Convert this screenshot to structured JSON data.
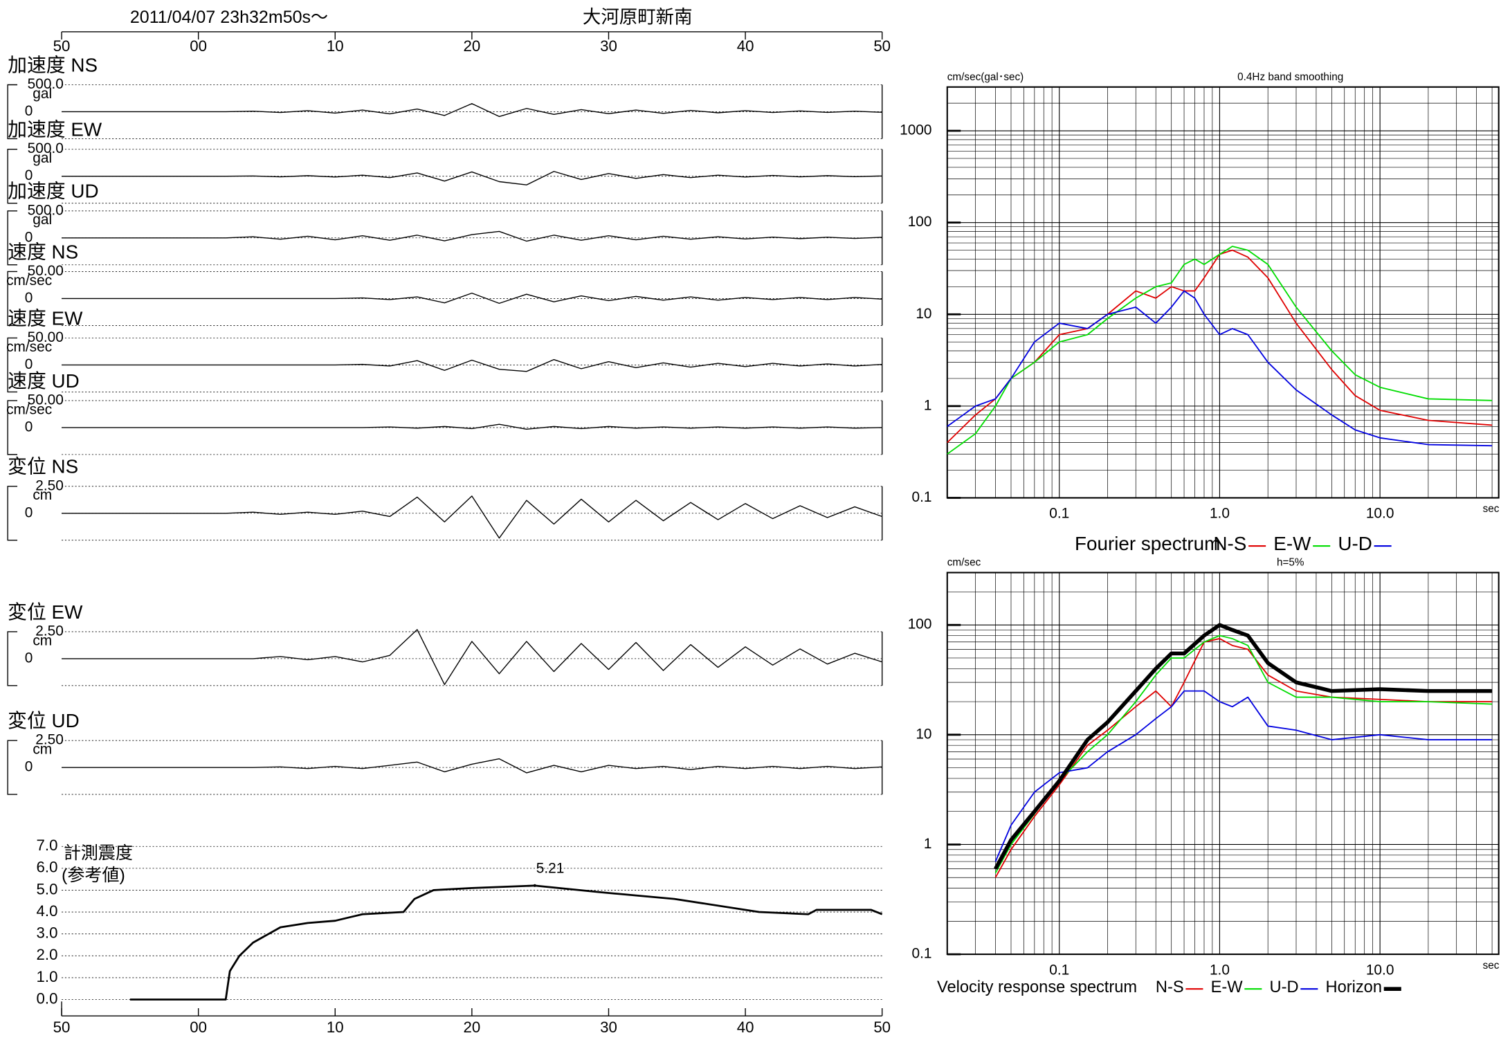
{
  "header": {
    "datetime": "2011/04/07  23h32m50s〜",
    "station": "大河原町新南"
  },
  "chart_data": [
    {
      "type": "trace",
      "title": "加速度 NS",
      "unit": "gal",
      "color": "#000000",
      "xlim": [
        0,
        60
      ],
      "xticks": [
        {
          "value": 0,
          "label": "50"
        },
        {
          "value": 10,
          "label": "00"
        },
        {
          "value": 20,
          "label": "10"
        },
        {
          "value": 30,
          "label": "20"
        },
        {
          "value": 40,
          "label": "30"
        },
        {
          "value": 50,
          "label": "40"
        },
        {
          "value": 60,
          "label": "50"
        }
      ],
      "ylim": [
        -500,
        500
      ],
      "yticks": [
        {
          "value": 500,
          "label": "500.0"
        },
        0
      ],
      "x": [
        0,
        2,
        4,
        6,
        8,
        10,
        12,
        14,
        16,
        18,
        20,
        22,
        24,
        26,
        28,
        30,
        32,
        34,
        36,
        38,
        40,
        42,
        44,
        46,
        48,
        50,
        52,
        54,
        56,
        58,
        60
      ],
      "values": [
        0,
        0,
        0,
        0,
        0,
        0,
        0,
        10,
        -15,
        20,
        -25,
        30,
        -40,
        50,
        -70,
        150,
        -90,
        60,
        -50,
        40,
        -35,
        30,
        -30,
        25,
        -20,
        20,
        -15,
        15,
        -12,
        10,
        -10
      ]
    },
    {
      "type": "trace",
      "title": "加速度 EW",
      "unit": "gal",
      "color": "#000000",
      "xlim": [
        0,
        60
      ],
      "ylim": [
        -500,
        500
      ],
      "yticks": [
        {
          "value": 500,
          "label": "500.0"
        },
        0
      ],
      "x": [
        0,
        2,
        4,
        6,
        8,
        10,
        12,
        14,
        16,
        18,
        20,
        22,
        24,
        26,
        28,
        30,
        32,
        34,
        36,
        38,
        40,
        42,
        44,
        46,
        48,
        50,
        52,
        54,
        56,
        58,
        60
      ],
      "values": [
        0,
        0,
        0,
        0,
        0,
        0,
        0,
        5,
        -10,
        10,
        -15,
        20,
        -25,
        60,
        -90,
        80,
        -100,
        -160,
        90,
        -60,
        50,
        -40,
        30,
        -25,
        20,
        -15,
        15,
        -10,
        10,
        -8,
        5
      ]
    },
    {
      "type": "trace",
      "title": "加速度 UD",
      "unit": "gal",
      "color": "#000000",
      "xlim": [
        0,
        60
      ],
      "ylim": [
        -500,
        500
      ],
      "yticks": [
        {
          "value": 500,
          "label": "500.0"
        },
        0
      ],
      "x": [
        0,
        2,
        4,
        6,
        8,
        10,
        12,
        14,
        16,
        18,
        20,
        22,
        24,
        26,
        28,
        30,
        32,
        34,
        36,
        38,
        40,
        42,
        44,
        46,
        48,
        50,
        52,
        54,
        56,
        58,
        60
      ],
      "values": [
        0,
        0,
        0,
        0,
        0,
        0,
        0,
        20,
        -25,
        30,
        -35,
        40,
        -45,
        50,
        -55,
        60,
        120,
        -60,
        50,
        -45,
        40,
        -35,
        30,
        -25,
        20,
        -20,
        15,
        -15,
        12,
        -10,
        10
      ]
    },
    {
      "type": "trace",
      "title": "速度 NS",
      "unit": "cm/sec",
      "color": "#000000",
      "xlim": [
        0,
        60
      ],
      "ylim": [
        -50,
        50
      ],
      "yticks": [
        {
          "value": 50,
          "label": "50.00"
        },
        0
      ],
      "x": [
        0,
        2,
        4,
        6,
        8,
        10,
        12,
        14,
        16,
        18,
        20,
        22,
        24,
        26,
        28,
        30,
        32,
        34,
        36,
        38,
        40,
        42,
        44,
        46,
        48,
        50,
        52,
        54,
        56,
        58,
        60
      ],
      "values": [
        0,
        0,
        0,
        0,
        0,
        0,
        0,
        0,
        0,
        0,
        0,
        1,
        -2,
        3,
        -8,
        10,
        -9,
        8,
        -6,
        5,
        -4,
        4,
        -3,
        3,
        -3,
        2,
        -2,
        2,
        -2,
        2,
        -1
      ]
    },
    {
      "type": "trace",
      "title": "速度 EW",
      "unit": "cm/sec",
      "color": "#000000",
      "xlim": [
        0,
        60
      ],
      "ylim": [
        -50,
        50
      ],
      "yticks": [
        {
          "value": 50,
          "label": "50.00"
        },
        0
      ],
      "x": [
        0,
        2,
        4,
        6,
        8,
        10,
        12,
        14,
        16,
        18,
        20,
        22,
        24,
        26,
        28,
        30,
        32,
        34,
        36,
        38,
        40,
        42,
        44,
        46,
        48,
        50,
        52,
        54,
        56,
        58,
        60
      ],
      "values": [
        0,
        0,
        0,
        0,
        0,
        0,
        0,
        0,
        0,
        0,
        0,
        1,
        -2,
        8,
        -10,
        9,
        -8,
        -12,
        10,
        -7,
        6,
        -5,
        4,
        -4,
        3,
        -3,
        3,
        -2,
        2,
        -2,
        1
      ]
    },
    {
      "type": "trace",
      "title": "速度 UD",
      "unit": "cm/sec",
      "color": "#000000",
      "xlim": [
        0,
        60
      ],
      "ylim": [
        -50,
        50
      ],
      "yticks": [
        {
          "value": 50,
          "label": "50.00"
        },
        0
      ],
      "x": [
        0,
        2,
        4,
        6,
        8,
        10,
        12,
        14,
        16,
        18,
        20,
        22,
        24,
        26,
        28,
        30,
        32,
        34,
        36,
        38,
        40,
        42,
        44,
        46,
        48,
        50,
        52,
        54,
        56,
        58,
        60
      ],
      "values": [
        0,
        0,
        0,
        0,
        0,
        0,
        0,
        0,
        0,
        0,
        0,
        0,
        1,
        -1,
        2,
        -2,
        6,
        -3,
        2,
        -2,
        2,
        -1,
        1,
        -1,
        1,
        -1,
        1,
        -1,
        1,
        -1,
        0
      ]
    },
    {
      "type": "trace",
      "title": "変位 NS",
      "unit": "cm",
      "color": "#000000",
      "xlim": [
        0,
        60
      ],
      "ylim": [
        -2.5,
        2.5
      ],
      "yticks": [
        {
          "value": 2.5,
          "label": "2.50"
        },
        0
      ],
      "x": [
        0,
        2,
        4,
        6,
        8,
        10,
        12,
        14,
        16,
        18,
        20,
        22,
        24,
        26,
        28,
        30,
        32,
        34,
        36,
        38,
        40,
        42,
        44,
        46,
        48,
        50,
        52,
        54,
        56,
        58,
        60
      ],
      "values": [
        0,
        0,
        0,
        0,
        0,
        0,
        0,
        0.1,
        -0.1,
        0.1,
        -0.1,
        0.2,
        -0.3,
        1.5,
        -0.8,
        1.6,
        -2.3,
        1.2,
        -1.0,
        1.3,
        -0.8,
        1.2,
        -0.7,
        1.0,
        -0.6,
        0.9,
        -0.5,
        0.7,
        -0.4,
        0.6,
        -0.3
      ]
    },
    {
      "type": "trace",
      "title": "変位 EW",
      "unit": "cm",
      "color": "#000000",
      "xlim": [
        0,
        60
      ],
      "ylim": [
        -2.5,
        2.5
      ],
      "yticks": [
        {
          "value": 2.5,
          "label": "2.50"
        },
        0
      ],
      "x": [
        0,
        2,
        4,
        6,
        8,
        10,
        12,
        14,
        16,
        18,
        20,
        22,
        24,
        26,
        28,
        30,
        32,
        34,
        36,
        38,
        40,
        42,
        44,
        46,
        48,
        50,
        52,
        54,
        56,
        58,
        60
      ],
      "values": [
        0,
        0,
        0,
        0,
        0,
        0,
        0,
        0,
        0.2,
        -0.1,
        0.2,
        -0.3,
        0.3,
        2.7,
        -2.4,
        1.6,
        -1.4,
        1.6,
        -1.2,
        1.4,
        -1.0,
        1.5,
        -1.1,
        1.3,
        -0.8,
        1.1,
        -0.6,
        0.9,
        -0.5,
        0.5,
        -0.3
      ]
    },
    {
      "type": "trace",
      "title": "変位 UD",
      "unit": "cm",
      "color": "#000000",
      "xlim": [
        0,
        60
      ],
      "ylim": [
        -2.5,
        2.5
      ],
      "yticks": [
        {
          "value": 2.5,
          "label": "2.50"
        },
        0
      ],
      "x": [
        0,
        2,
        4,
        6,
        8,
        10,
        12,
        14,
        16,
        18,
        20,
        22,
        24,
        26,
        28,
        30,
        32,
        34,
        36,
        38,
        40,
        42,
        44,
        46,
        48,
        50,
        52,
        54,
        56,
        58,
        60
      ],
      "values": [
        0,
        0,
        0,
        0,
        0,
        0,
        0,
        0,
        0.05,
        -0.1,
        0.1,
        -0.1,
        0.2,
        0.5,
        -0.4,
        0.3,
        0.8,
        -0.5,
        0.2,
        -0.4,
        0.2,
        -0.1,
        0.1,
        -0.2,
        0.1,
        -0.1,
        0.1,
        -0.1,
        0.1,
        -0.1,
        0.05
      ]
    },
    {
      "type": "intensity",
      "y_label": "計測震度",
      "y_label_note": "(参考値)",
      "color": "#000000",
      "xlim": [
        0,
        60
      ],
      "xticks": [
        {
          "value": 0,
          "label": "50"
        },
        {
          "value": 10,
          "label": "00"
        },
        {
          "value": 20,
          "label": "10"
        },
        {
          "value": 30,
          "label": "20"
        },
        {
          "value": 40,
          "label": "30"
        },
        {
          "value": 50,
          "label": "40"
        },
        {
          "value": 60,
          "label": "50"
        }
      ],
      "ylim": [
        0,
        7
      ],
      "yticks": [
        {
          "value": 0,
          "label": "0.0"
        },
        {
          "value": 1,
          "label": "1.0"
        },
        {
          "value": 2,
          "label": "2.0"
        },
        {
          "value": 3,
          "label": "3.0"
        },
        {
          "value": 4,
          "label": "4.0"
        },
        {
          "value": 5,
          "label": "5.0"
        },
        {
          "value": 6,
          "label": "6.0"
        },
        {
          "value": 7,
          "label": "7.0"
        }
      ],
      "x": [
        5,
        12,
        12.3,
        13,
        14,
        16,
        18,
        20,
        22,
        25,
        25.8,
        27.2,
        30,
        34.6,
        39.5,
        44.8,
        51,
        54.6,
        55.2,
        59.2,
        60
      ],
      "values": [
        0,
        0,
        1.3,
        2.0,
        2.6,
        3.3,
        3.5,
        3.6,
        3.9,
        4.0,
        4.6,
        5.0,
        5.1,
        5.21,
        4.9,
        4.6,
        4.0,
        3.9,
        4.1,
        4.1,
        3.9
      ],
      "peak": {
        "x": 34.6,
        "value": 5.21
      }
    },
    {
      "type": "spectrum",
      "title": "Fourier spectrum",
      "subtitle": "0.4Hz band smoothing",
      "y_label": "cm/sec(gal･sec)",
      "x_label": "sec",
      "log_x": true,
      "log_y": true,
      "grid": true,
      "xlim": [
        0.02,
        55
      ],
      "xticks": [
        0.1,
        {
          "value": 1,
          "label": "1.0"
        },
        {
          "value": 10,
          "label": "10.0"
        }
      ],
      "ylim": [
        0.1,
        3000
      ],
      "yticks": [
        0.1,
        1,
        10,
        100,
        1000
      ],
      "x": [
        0.02,
        0.03,
        0.04,
        0.05,
        0.07,
        0.1,
        0.15,
        0.2,
        0.3,
        0.4,
        0.5,
        0.6,
        0.7,
        0.8,
        1.0,
        1.2,
        1.5,
        2,
        3,
        5,
        7,
        10,
        20,
        50
      ],
      "series": [
        {
          "name": "N-S",
          "color": "#e00000",
          "values": [
            0.4,
            0.8,
            1.2,
            2,
            3,
            6,
            7,
            10,
            18,
            15,
            20,
            18,
            18,
            25,
            45,
            50,
            42,
            25,
            8,
            2.5,
            1.3,
            0.9,
            0.7,
            0.62
          ]
        },
        {
          "name": "E-W",
          "color": "#00dd00",
          "values": [
            0.3,
            0.5,
            1.0,
            2,
            3,
            5,
            6,
            9,
            15,
            20,
            22,
            35,
            40,
            35,
            45,
            55,
            50,
            35,
            12,
            4,
            2.2,
            1.6,
            1.2,
            1.15
          ]
        },
        {
          "name": "U-D",
          "color": "#0000e0",
          "values": [
            0.6,
            1.0,
            1.2,
            2,
            5,
            8,
            7,
            10,
            12,
            8,
            12,
            18,
            15,
            10,
            6,
            7,
            6,
            3,
            1.5,
            0.8,
            0.55,
            0.45,
            0.38,
            0.37
          ]
        }
      ]
    },
    {
      "type": "spectrum",
      "title": "Velocity response spectrum",
      "subtitle": "h=5%",
      "y_label": "cm/sec",
      "x_label": "sec",
      "log_x": true,
      "log_y": true,
      "grid": true,
      "xlim": [
        0.02,
        55
      ],
      "xticks": [
        0.1,
        {
          "value": 1,
          "label": "1.0"
        },
        {
          "value": 10,
          "label": "10.0"
        }
      ],
      "ylim": [
        0.1,
        300
      ],
      "yticks": [
        0.1,
        1,
        10,
        100
      ],
      "x": [
        0.04,
        0.05,
        0.07,
        0.1,
        0.15,
        0.2,
        0.3,
        0.4,
        0.5,
        0.6,
        0.8,
        1.0,
        1.2,
        1.5,
        2,
        3,
        5,
        10,
        20,
        50
      ],
      "series": [
        {
          "name": "N-S",
          "color": "#e00000",
          "values": [
            0.5,
            0.9,
            1.8,
            3.5,
            8,
            11,
            18,
            25,
            18,
            30,
            70,
            75,
            65,
            60,
            35,
            25,
            22,
            21,
            20,
            20
          ]
        },
        {
          "name": "E-W",
          "color": "#00dd00",
          "values": [
            0.55,
            1.0,
            1.9,
            3.8,
            7,
            10,
            20,
            35,
            50,
            50,
            70,
            80,
            75,
            65,
            30,
            22,
            22,
            20,
            20,
            19
          ]
        },
        {
          "name": "U-D",
          "color": "#0000e0",
          "values": [
            0.7,
            1.5,
            3,
            4.5,
            5,
            7,
            10,
            14,
            18,
            25,
            25,
            20,
            18,
            22,
            12,
            11,
            9,
            10,
            9,
            9
          ]
        },
        {
          "name": "Horizon",
          "color": "#000000",
          "values": [
            0.6,
            1.1,
            2.0,
            3.8,
            9,
            13,
            25,
            40,
            55,
            55,
            80,
            100,
            90,
            80,
            45,
            30,
            25,
            26,
            25,
            25
          ]
        }
      ]
    }
  ]
}
